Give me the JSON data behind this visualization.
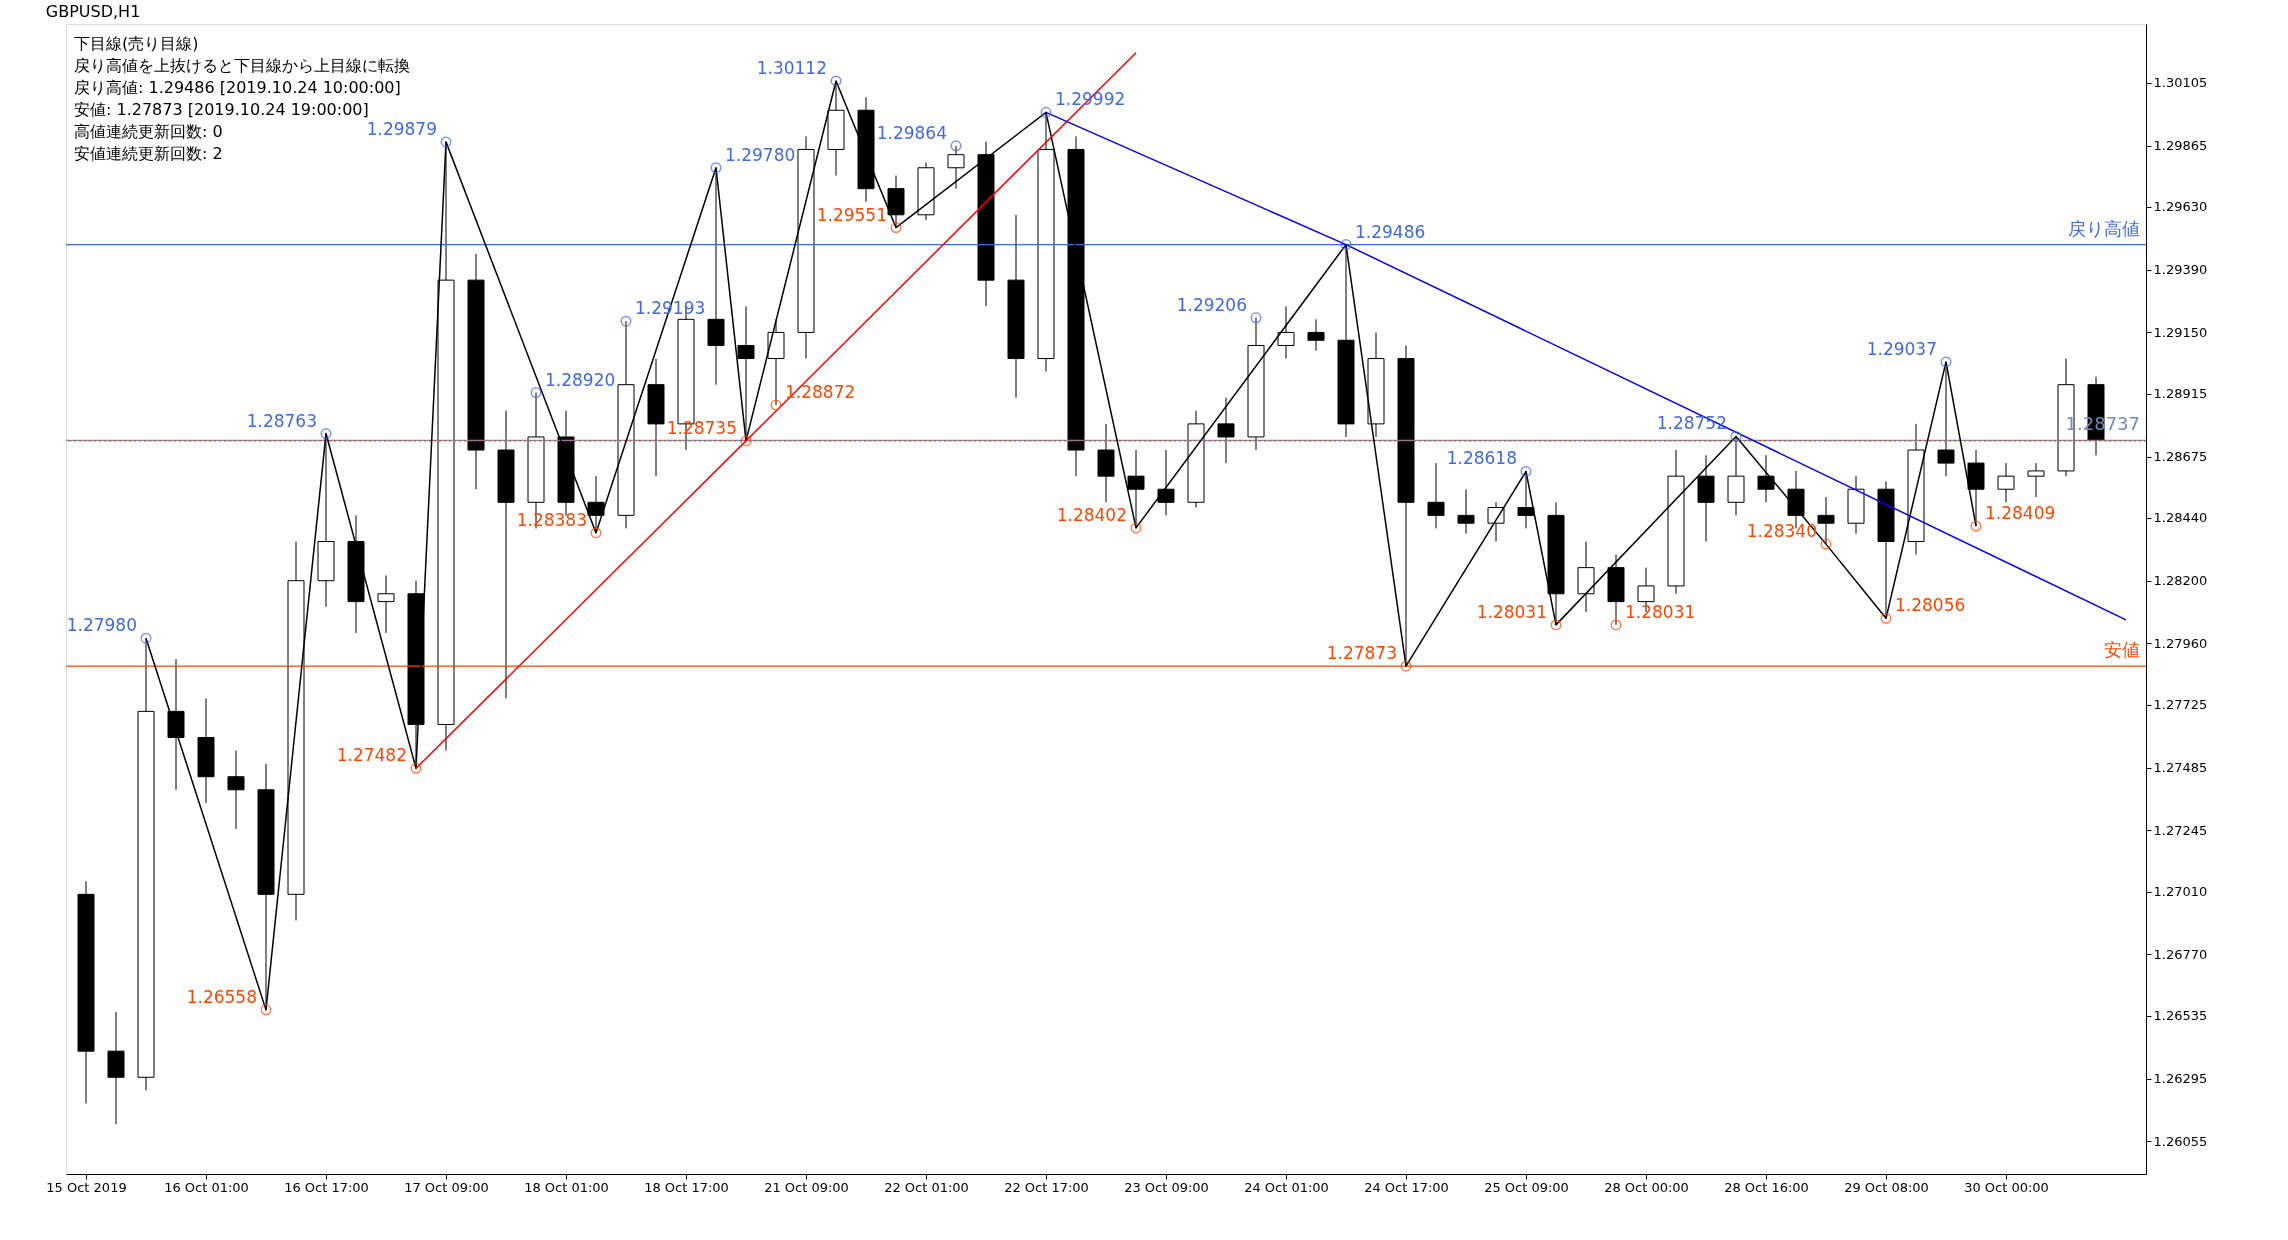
{
  "chart_data": {
    "type": "candlestick",
    "title": "GBPUSD,H1",
    "categories": [
      "15 Oct 2019",
      null,
      null,
      null,
      "16 Oct 01:00",
      null,
      null,
      null,
      "16 Oct 17:00",
      null,
      null,
      null,
      "17 Oct 09:00",
      null,
      null,
      null,
      "18 Oct 01:00",
      null,
      null,
      null,
      "18 Oct 17:00",
      null,
      null,
      null,
      "21 Oct 09:00",
      null,
      null,
      null,
      "22 Oct 01:00",
      null,
      null,
      null,
      "22 Oct 17:00",
      null,
      null,
      null,
      "23 Oct 09:00",
      null,
      null,
      null,
      "24 Oct 01:00",
      null,
      null,
      null,
      "24 Oct 17:00",
      null,
      null,
      null,
      "25 Oct 09:00",
      null,
      null,
      null,
      "28 Oct 00:00",
      null,
      null,
      null,
      "28 Oct 16:00",
      null,
      null,
      null,
      "29 Oct 08:00",
      null,
      null,
      null,
      "30 Oct 00:00",
      null,
      null,
      null,
      null
    ],
    "ohlc": [
      [
        1.27,
        1.2705,
        1.262,
        1.264
      ],
      [
        1.264,
        1.2655,
        1.2612,
        1.263
      ],
      [
        1.263,
        1.2798,
        1.2625,
        1.277
      ],
      [
        1.277,
        1.279,
        1.274,
        1.276
      ],
      [
        1.276,
        1.2775,
        1.2735,
        1.2745
      ],
      [
        1.2745,
        1.2755,
        1.2725,
        1.274
      ],
      [
        1.274,
        1.275,
        1.26558,
        1.27
      ],
      [
        1.27,
        1.2835,
        1.269,
        1.282
      ],
      [
        1.282,
        1.28763,
        1.281,
        1.2835
      ],
      [
        1.2835,
        1.2845,
        1.28,
        1.2812
      ],
      [
        1.2812,
        1.2822,
        1.28,
        1.2815
      ],
      [
        1.2815,
        1.282,
        1.27482,
        1.2765
      ],
      [
        1.2765,
        1.29879,
        1.2755,
        1.2935
      ],
      [
        1.2935,
        1.2945,
        1.2855,
        1.287
      ],
      [
        1.287,
        1.2885,
        1.2775,
        1.285
      ],
      [
        1.285,
        1.2892,
        1.284,
        1.2875
      ],
      [
        1.2875,
        1.2885,
        1.2845,
        1.285
      ],
      [
        1.285,
        1.286,
        1.28383,
        1.2845
      ],
      [
        1.2845,
        1.29193,
        1.284,
        1.2895
      ],
      [
        1.2895,
        1.2905,
        1.286,
        1.288
      ],
      [
        1.288,
        1.2925,
        1.287,
        1.292
      ],
      [
        1.292,
        1.2978,
        1.2895,
        1.291
      ],
      [
        1.291,
        1.2925,
        1.28735,
        1.2905
      ],
      [
        1.2905,
        1.292,
        1.28872,
        1.2915
      ],
      [
        1.2915,
        1.299,
        1.2905,
        1.2985
      ],
      [
        1.2985,
        1.30112,
        1.2975,
        1.3
      ],
      [
        1.3,
        1.3005,
        1.2965,
        1.297
      ],
      [
        1.297,
        1.2975,
        1.29551,
        1.296
      ],
      [
        1.296,
        1.298,
        1.2958,
        1.2978
      ],
      [
        1.2978,
        1.29864,
        1.297,
        1.2983
      ],
      [
        1.2983,
        1.2988,
        1.2925,
        1.2935
      ],
      [
        1.2935,
        1.296,
        1.289,
        1.2905
      ],
      [
        1.2905,
        1.29992,
        1.29,
        1.2985
      ],
      [
        1.2985,
        1.299,
        1.286,
        1.287
      ],
      [
        1.287,
        1.288,
        1.285,
        1.286
      ],
      [
        1.286,
        1.287,
        1.28402,
        1.2855
      ],
      [
        1.2855,
        1.287,
        1.2845,
        1.285
      ],
      [
        1.285,
        1.2885,
        1.2848,
        1.288
      ],
      [
        1.288,
        1.289,
        1.2865,
        1.2875
      ],
      [
        1.2875,
        1.29206,
        1.287,
        1.291
      ],
      [
        1.291,
        1.2925,
        1.2905,
        1.2915
      ],
      [
        1.2915,
        1.292,
        1.2908,
        1.2912
      ],
      [
        1.2912,
        1.29486,
        1.2875,
        1.288
      ],
      [
        1.288,
        1.2915,
        1.2875,
        1.2905
      ],
      [
        1.2905,
        1.291,
        1.27873,
        1.285
      ],
      [
        1.285,
        1.2865,
        1.284,
        1.2845
      ],
      [
        1.2845,
        1.2855,
        1.2838,
        1.2842
      ],
      [
        1.2842,
        1.285,
        1.2835,
        1.2848
      ],
      [
        1.2848,
        1.28618,
        1.284,
        1.2845
      ],
      [
        1.2845,
        1.285,
        1.28031,
        1.2815
      ],
      [
        1.2815,
        1.2835,
        1.2808,
        1.2825
      ],
      [
        1.2825,
        1.283,
        1.28031,
        1.2812
      ],
      [
        1.2812,
        1.2825,
        1.2808,
        1.2818
      ],
      [
        1.2818,
        1.287,
        1.2815,
        1.286
      ],
      [
        1.286,
        1.2868,
        1.2835,
        1.285
      ],
      [
        1.285,
        1.28752,
        1.2845,
        1.286
      ],
      [
        1.286,
        1.2868,
        1.285,
        1.2855
      ],
      [
        1.2855,
        1.2862,
        1.284,
        1.2845
      ],
      [
        1.2845,
        1.2852,
        1.2834,
        1.2842
      ],
      [
        1.2842,
        1.286,
        1.2838,
        1.2855
      ],
      [
        1.2855,
        1.2858,
        1.28056,
        1.2835
      ],
      [
        1.2835,
        1.288,
        1.283,
        1.287
      ],
      [
        1.287,
        1.29037,
        1.286,
        1.2865
      ],
      [
        1.2865,
        1.287,
        1.28409,
        1.2855
      ],
      [
        1.2855,
        1.2865,
        1.285,
        1.286
      ],
      [
        1.286,
        1.2865,
        1.2852,
        1.2862
      ],
      [
        1.2862,
        1.2905,
        1.286,
        1.2895
      ],
      [
        1.2895,
        1.2898,
        1.2868,
        1.28737
      ],
      null
    ],
    "color": "#000000",
    "series": [
      {
        "type": "line",
        "color": "#000000",
        "marker": "none",
        "values": [
          null,
          null,
          1.2798,
          null,
          null,
          null,
          1.26558,
          null,
          1.28763,
          null,
          null,
          1.27482,
          1.29879,
          null,
          null,
          null,
          null,
          1.28383,
          null,
          null,
          null,
          1.2978,
          1.28735,
          null,
          null,
          1.30112,
          null,
          1.29551,
          null,
          null,
          null,
          null,
          1.29992,
          null,
          null,
          1.28402,
          null,
          null,
          null,
          null,
          null,
          null,
          1.29486,
          null,
          1.27873,
          null,
          null,
          null,
          1.28618,
          1.28031,
          null,
          null,
          null,
          null,
          null,
          1.28752,
          null,
          null,
          1.2834,
          null,
          1.28056,
          null,
          1.29037,
          1.28409,
          null,
          null,
          null,
          null,
          null
        ]
      },
      {
        "type": "line",
        "color": "#ff0000",
        "marker": "none",
        "values": [
          null,
          null,
          null,
          null,
          null,
          null,
          null,
          null,
          null,
          null,
          null,
          1.27482,
          null,
          null,
          null,
          null,
          null,
          null,
          null,
          null,
          null,
          null,
          1.28735,
          null,
          null,
          null,
          null,
          null,
          null,
          null,
          null,
          null,
          null,
          null,
          null,
          1.3022,
          null,
          null,
          null,
          null,
          null,
          null,
          null,
          null,
          null,
          null,
          null,
          null,
          null,
          null,
          null,
          null,
          null,
          null,
          null,
          null,
          null,
          null,
          null,
          null,
          null,
          null,
          null,
          null,
          null,
          null,
          null,
          null,
          null
        ]
      },
      {
        "type": "line",
        "color": "#0000ff",
        "marker": "none",
        "values": [
          null,
          null,
          null,
          null,
          null,
          null,
          null,
          null,
          null,
          null,
          null,
          null,
          null,
          null,
          null,
          null,
          null,
          null,
          null,
          null,
          null,
          null,
          null,
          null,
          null,
          null,
          null,
          null,
          null,
          null,
          null,
          null,
          1.29992,
          null,
          null,
          null,
          null,
          null,
          null,
          null,
          null,
          null,
          1.29486,
          null,
          null,
          null,
          null,
          null,
          null,
          null,
          null,
          null,
          null,
          null,
          null,
          null,
          null,
          null,
          null,
          null,
          null,
          null,
          null,
          null,
          null,
          null,
          null,
          null,
          1.2805
        ]
      },
      {
        "type": "scatter",
        "color": "#4169e1",
        "marker": "circle",
        "values": [
          null,
          null,
          1.2798,
          null,
          null,
          null,
          null,
          null,
          1.28763,
          null,
          null,
          null,
          1.29879,
          null,
          null,
          1.2892,
          null,
          null,
          1.29193,
          null,
          null,
          1.2978,
          null,
          null,
          null,
          1.30112,
          null,
          null,
          null,
          1.29864,
          null,
          null,
          1.29992,
          null,
          null,
          null,
          null,
          null,
          null,
          1.29206,
          null,
          null,
          1.29486,
          null,
          null,
          null,
          null,
          null,
          1.28618,
          null,
          null,
          null,
          null,
          null,
          null,
          1.28752,
          null,
          null,
          null,
          null,
          null,
          null,
          1.29037,
          null,
          null,
          null,
          null,
          null,
          null
        ],
        "value_labels": [
          null,
          null,
          "1.27980",
          null,
          null,
          null,
          null,
          null,
          "1.28763",
          null,
          null,
          null,
          "1.29879",
          null,
          null,
          "1.28920",
          null,
          null,
          "1.29193",
          null,
          null,
          "1.29780",
          null,
          null,
          null,
          "1.30112",
          null,
          null,
          null,
          "1.29864",
          null,
          null,
          "1.29992",
          null,
          null,
          null,
          null,
          null,
          null,
          "1.29206",
          null,
          null,
          "1.29486",
          null,
          null,
          null,
          null,
          null,
          "1.28618",
          null,
          null,
          null,
          null,
          null,
          null,
          "1.28752",
          null,
          null,
          null,
          null,
          null,
          null,
          "1.29037",
          null,
          null,
          null,
          null,
          null,
          null
        ]
      },
      {
        "type": "scatter",
        "color": "#ff4500",
        "marker": "circle",
        "values": [
          null,
          null,
          null,
          null,
          null,
          null,
          1.26558,
          null,
          null,
          null,
          null,
          1.27482,
          null,
          null,
          null,
          null,
          null,
          1.28383,
          null,
          null,
          null,
          null,
          1.28735,
          1.28872,
          null,
          null,
          null,
          1.29551,
          null,
          null,
          null,
          null,
          null,
          null,
          null,
          1.28402,
          null,
          null,
          null,
          null,
          null,
          null,
          null,
          null,
          1.27873,
          null,
          null,
          null,
          null,
          1.28031,
          null,
          1.28031,
          null,
          null,
          null,
          null,
          null,
          null,
          1.2834,
          null,
          1.28056,
          null,
          null,
          1.28409,
          null,
          null,
          null,
          null,
          null
        ],
        "value_labels": [
          null,
          null,
          null,
          null,
          null,
          null,
          "1.26558",
          null,
          null,
          null,
          null,
          "1.27482",
          null,
          null,
          null,
          null,
          null,
          "1.28383",
          null,
          null,
          null,
          null,
          "1.28735",
          "1.28872",
          null,
          null,
          null,
          "1.29551",
          null,
          null,
          null,
          null,
          null,
          null,
          null,
          "1.28402",
          null,
          null,
          null,
          null,
          null,
          null,
          null,
          null,
          "1.27873",
          null,
          null,
          null,
          null,
          "1.28031",
          null,
          "1.28031",
          null,
          null,
          null,
          null,
          null,
          null,
          "1.28340",
          null,
          "1.28056",
          null,
          null,
          "1.28409",
          null,
          null,
          null,
          null,
          null
        ]
      }
    ],
    "ylim": [
      1.2593,
      1.3033
    ],
    "yticks": [
      1.30105,
      1.29865,
      {
        "value": 1.2963,
        "label": "1.29630"
      },
      {
        "value": 1.2939,
        "label": "1.29390"
      },
      {
        "value": 1.2915,
        "label": "1.29150"
      },
      1.28915,
      1.28675,
      {
        "value": 1.2844,
        "label": "1.28440"
      },
      {
        "value": 1.282,
        "label": "1.28200"
      },
      {
        "value": 1.2796,
        "label": "1.27960"
      },
      1.27725,
      1.27485,
      1.27245,
      {
        "value": 1.2701,
        "label": "1.27010"
      },
      {
        "value": 1.2677,
        "label": "1.26770"
      },
      1.26535,
      1.26295,
      1.26055
    ],
    "ref_lines": [
      {
        "axis": "y",
        "value": 1.28737,
        "label": "1.28737",
        "color": "#6c8ebf",
        "line_style": "solid"
      },
      {
        "axis": "y",
        "value": 1.28735,
        "color": "#ff4500",
        "line_style": "dotted"
      },
      {
        "axis": "y",
        "value": 1.29486,
        "label": "戻り高値",
        "color": "#4169e1",
        "line_style": "solid"
      },
      {
        "axis": "y",
        "value": 1.27873,
        "label": "安値",
        "color": "#ff4500",
        "line_style": "solid"
      }
    ],
    "annotations": [
      "下目線(売り目線)",
      "戻り高値を上抜けると下目線から上目線に転換",
      "戻り高値: 1.29486 [2019.10.24 10:00:00]",
      "安値: 1.27873 [2019.10.24 19:00:00]",
      "高値連続更新回数: 0",
      "安値連続更新回数: 2"
    ],
    "grid": false
  }
}
